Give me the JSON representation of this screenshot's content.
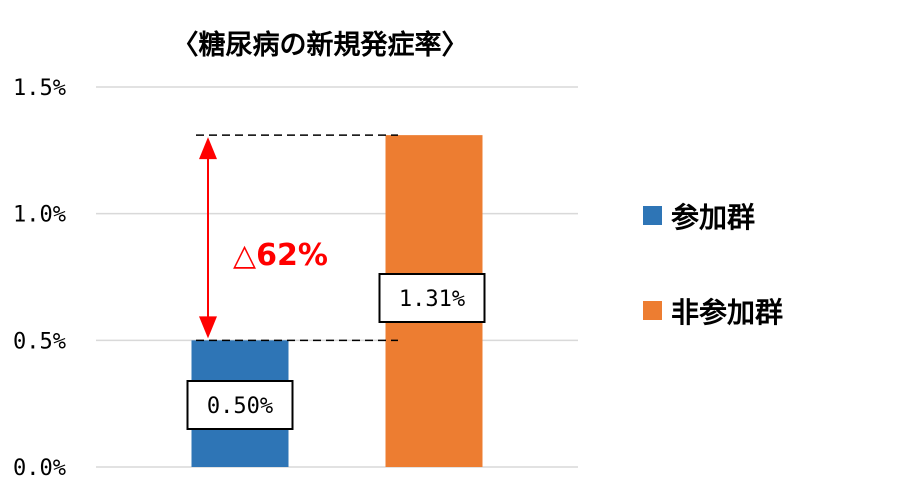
{
  "chart_data": {
    "type": "bar",
    "title": "〈糖尿病の新規発症率〉",
    "categories": [
      "参加群",
      "非参加群"
    ],
    "series": [
      {
        "name": "参加群",
        "value": 0.5,
        "label": "0.50%",
        "color": "#2e75b6"
      },
      {
        "name": "非参加群",
        "value": 1.31,
        "label": "1.31%",
        "color": "#ed7d31"
      }
    ],
    "ylim": [
      0,
      1.5
    ],
    "yticks": [
      {
        "value": 0.0,
        "label": "0.0%"
      },
      {
        "value": 0.5,
        "label": "0.5%"
      },
      {
        "value": 1.0,
        "label": "1.0%"
      },
      {
        "value": 1.5,
        "label": "1.5%"
      }
    ],
    "grid": true,
    "legend_position": "right",
    "annotation": {
      "text": "△62%",
      "color": "#ff0000",
      "from": 0.5,
      "to": 1.31
    }
  }
}
